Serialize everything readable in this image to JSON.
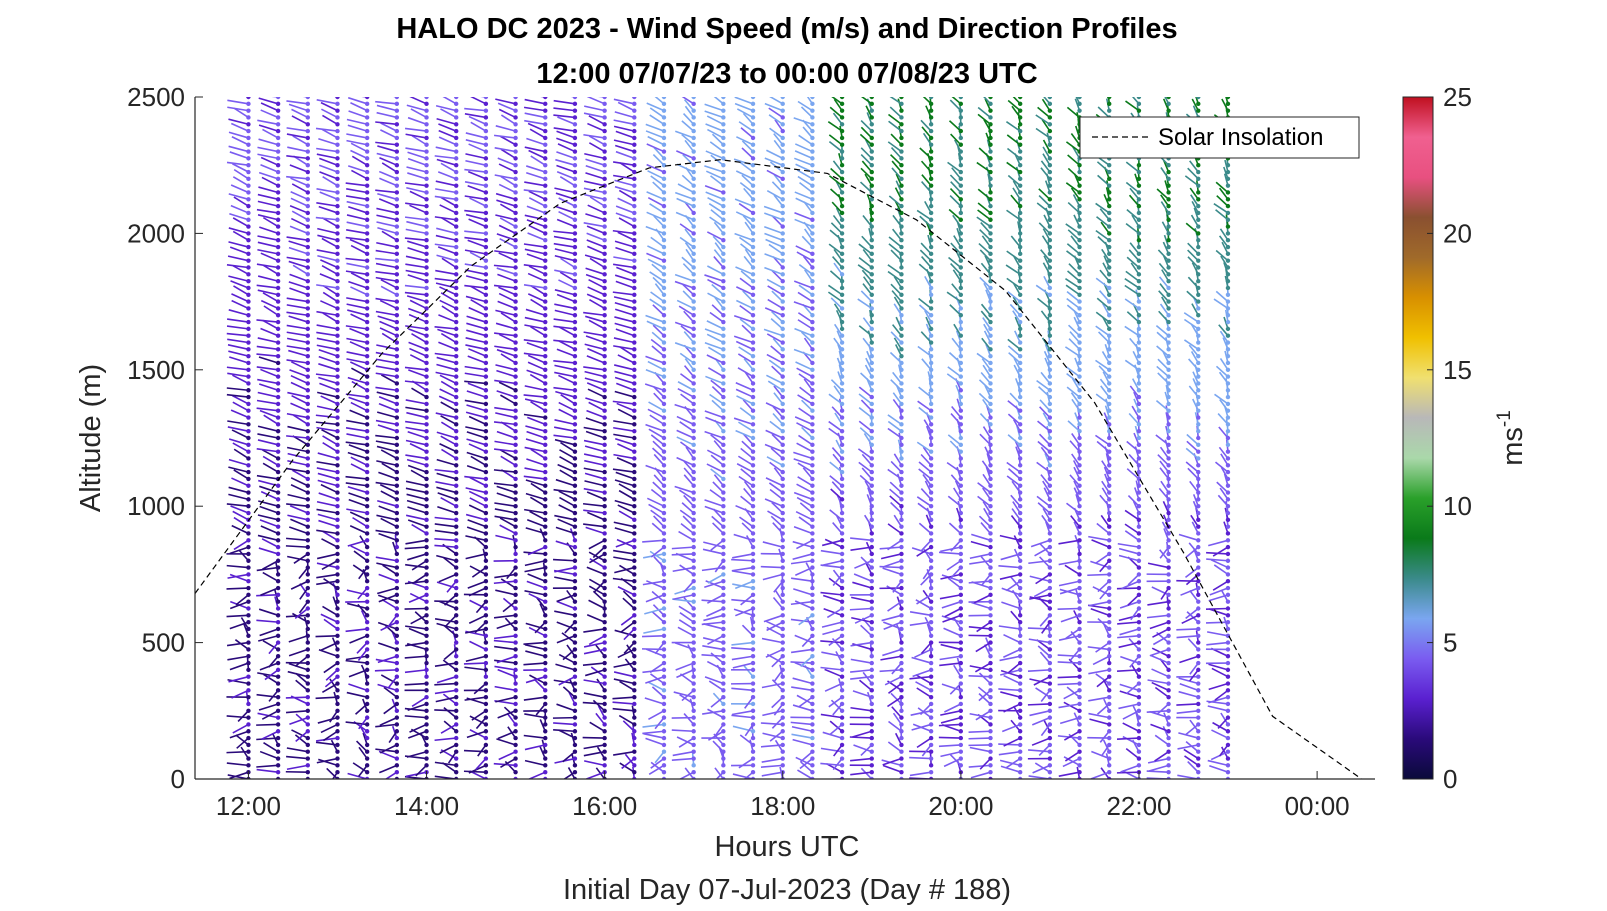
{
  "chart_data": {
    "type": "wind_barbs",
    "title": "HALO DC 2023 - Wind Speed (m/s) and Direction Profiles",
    "subtitle": "12:00 07/07/23 to 00:00 07/08/23  UTC",
    "xlabel": "Hours UTC",
    "xlabel2": "Initial Day 07-Jul-2023 (Day # 188)",
    "ylabel": "Altitude (m)",
    "x_ticks": [
      "12:00",
      "14:00",
      "16:00",
      "18:00",
      "20:00",
      "22:00",
      "00:00"
    ],
    "x_tick_hours": [
      12,
      14,
      16,
      18,
      20,
      22,
      24
    ],
    "xlim_hours": [
      11.4,
      24.65
    ],
    "y_ticks": [
      "0",
      "500",
      "1000",
      "1500",
      "2000",
      "2500"
    ],
    "y_tick_values": [
      0,
      500,
      1000,
      1500,
      2000,
      2500
    ],
    "ylim": [
      0,
      2500
    ],
    "legend": {
      "entries": [
        "Solar Insolation"
      ],
      "location": "top-right"
    },
    "colorbar": {
      "label": "ms",
      "label_exponent": "-1",
      "ticks": [
        "0",
        "5",
        "10",
        "15",
        "20",
        "25"
      ],
      "range": [
        0,
        25
      ],
      "colors": [
        "#0a0a3a",
        "#2a0a7a",
        "#5a20d0",
        "#7a5cf0",
        "#7aa6f0",
        "#3a8a8a",
        "#0a7a1a",
        "#2aa02a",
        "#aad8aa",
        "#b8b8b8",
        "#f0e070",
        "#f0c000",
        "#d89000",
        "#a06a2a",
        "#8a5030",
        "#e85080",
        "#f06090",
        "#c01020"
      ]
    },
    "profile_start_hour": 12.0,
    "profile_step_hours": 0.3333,
    "profile_end_hour": 23.0,
    "altitude_step_m": 25,
    "regimes": [
      {
        "to_hour": 16.6,
        "upper_speed": 3.2,
        "upper_dir_deg": 300,
        "lower_speed": 1.2
      },
      {
        "to_hour": 18.5,
        "upper_speed": 5.0,
        "upper_dir_deg": 320,
        "lower_speed": 3.8
      },
      {
        "to_hour": 23.2,
        "upper_speed": 7.6,
        "upper_dir_deg": 340,
        "lower_speed": 3.2
      }
    ],
    "solar_insolation": {
      "peak_hour": 17.3,
      "peak_altitude": 2270,
      "points": [
        {
          "hour": 11.4,
          "altitude": 680
        },
        {
          "hour": 12.5,
          "altitude": 1170
        },
        {
          "hour": 13.5,
          "altitude": 1560
        },
        {
          "hour": 14.5,
          "altitude": 1880
        },
        {
          "hour": 15.5,
          "altitude": 2110
        },
        {
          "hour": 16.5,
          "altitude": 2240
        },
        {
          "hour": 17.3,
          "altitude": 2270
        },
        {
          "hour": 18.5,
          "altitude": 2220
        },
        {
          "hour": 19.5,
          "altitude": 2050
        },
        {
          "hour": 20.5,
          "altitude": 1790
        },
        {
          "hour": 21.5,
          "altitude": 1380
        },
        {
          "hour": 22.5,
          "altitude": 830
        },
        {
          "hour": 23.5,
          "altitude": 230
        },
        {
          "hour": 24.5,
          "altitude": 0
        }
      ]
    }
  }
}
